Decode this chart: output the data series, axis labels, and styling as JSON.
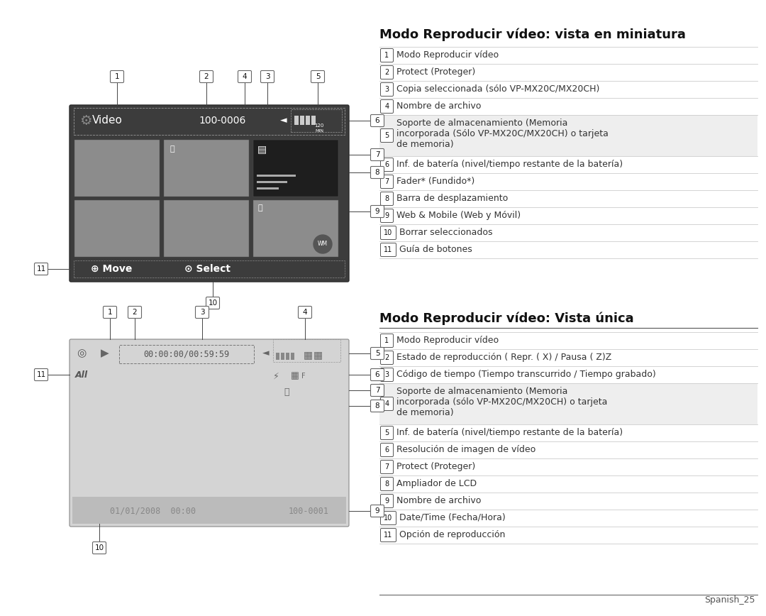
{
  "bg_color": "#ffffff",
  "title1": "Modo Reproducir vídeo: vista en miniatura",
  "title2": "Modo Reproducir vídeo: Vista única",
  "items1": [
    [
      "1",
      "Modo Reproducir vídeo"
    ],
    [
      "2",
      "Protect (Proteger)"
    ],
    [
      "3",
      "Copia seleccionada (sólo VP-MX20C/MX20CH)"
    ],
    [
      "4",
      "Nombre de archivo"
    ],
    [
      "5",
      "Soporte de almacenamiento (Memoria\nincorporada (Sólo VP-MX20C/MX20CH) o tarjeta\nde memoria)"
    ],
    [
      "6",
      "Inf. de batería (nivel/tiempo restante de la batería)"
    ],
    [
      "7",
      "Fader* (Fundido*)"
    ],
    [
      "8",
      "Barra de desplazamiento"
    ],
    [
      "9",
      "Web & Mobile (Web y Móvil)"
    ],
    [
      "10",
      "Borrar seleccionados"
    ],
    [
      "11",
      "Guía de botones"
    ]
  ],
  "items2": [
    [
      "1",
      "Modo Reproducir vídeo"
    ],
    [
      "2",
      "Estado de reproducción ( Repr. ( X) / Pausa ( Z)Z"
    ],
    [
      "3",
      "Código de tiempo (Tiempo transcurrido / Tiempo grabado)"
    ],
    [
      "4",
      "Soporte de almacenamiento (Memoria\nincorporada (sólo VP-MX20C/MX20CH) o tarjeta\nde memoria)"
    ],
    [
      "5",
      "Inf. de batería (nivel/tiempo restante de la batería)"
    ],
    [
      "6",
      "Resolución de imagen de vídeo"
    ],
    [
      "7",
      "Protect (Proteger)"
    ],
    [
      "8",
      "Ampliador de LCD"
    ],
    [
      "9",
      "Nombre de archivo"
    ],
    [
      "10",
      "Date/Time (Fecha/Hora)"
    ],
    [
      "11",
      "Opción de reproducción"
    ]
  ],
  "footer": "Spanish_25",
  "screen1_bg": "#3c3c3c",
  "screen2_bg": "#d4d4d4",
  "thumb_gray": "#8c8c8c",
  "thumb_dark": "#1e1e1e",
  "label_border": "#666666",
  "line_color": "#cccccc",
  "title_color": "#111111",
  "text_color": "#333333",
  "item_line_height": [
    24,
    24,
    24,
    24,
    58,
    24,
    24,
    24,
    24,
    24,
    24
  ],
  "item2_line_height": [
    24,
    24,
    24,
    58,
    24,
    24,
    24,
    24,
    24,
    24,
    24
  ]
}
